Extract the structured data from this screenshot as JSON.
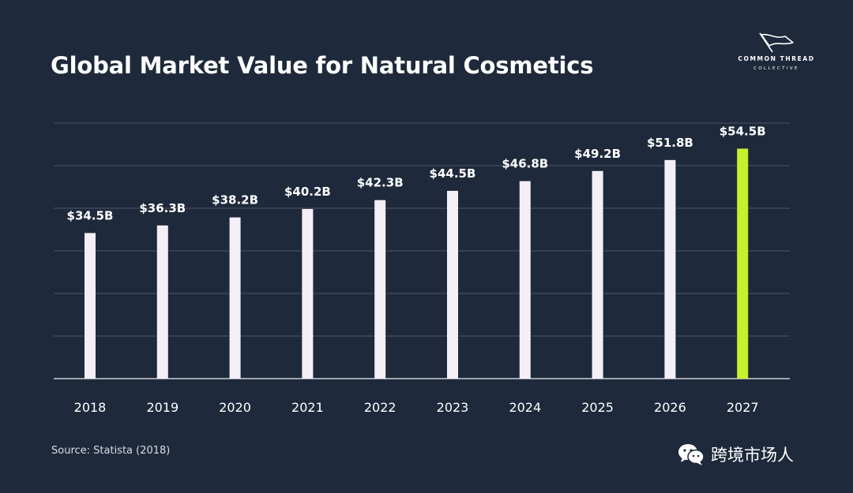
{
  "header": {
    "title": "Global Market Value for Natural Cosmetics"
  },
  "brand": {
    "name": "COMMON THREAD",
    "sub": "COLLECTIVE"
  },
  "footer": {
    "source": "Source: Statista (2018)",
    "watermark": "跨境市场人"
  },
  "colors": {
    "background": "#1e2a3b",
    "bar": "#f4eff6",
    "highlight": "#c8f02a",
    "grid": "#4a5667",
    "text": "#ffffff"
  },
  "chart_data": {
    "type": "bar",
    "title": "Global Market Value for Natural Cosmetics",
    "xlabel": "",
    "ylabel": "",
    "categories": [
      "2018",
      "2019",
      "2020",
      "2021",
      "2022",
      "2023",
      "2024",
      "2025",
      "2026",
      "2027"
    ],
    "values": [
      34.5,
      36.3,
      38.2,
      40.2,
      42.3,
      44.5,
      46.8,
      49.2,
      51.8,
      54.5
    ],
    "value_labels": [
      "$34.5B",
      "$36.3B",
      "$38.2B",
      "$40.2B",
      "$42.3B",
      "$44.5B",
      "$46.8B",
      "$49.2B",
      "$51.8B",
      "$54.5B"
    ],
    "highlight_category": "2027",
    "unit": "B USD",
    "ylim": [
      0,
      60
    ],
    "grid": true,
    "legend": "none"
  }
}
